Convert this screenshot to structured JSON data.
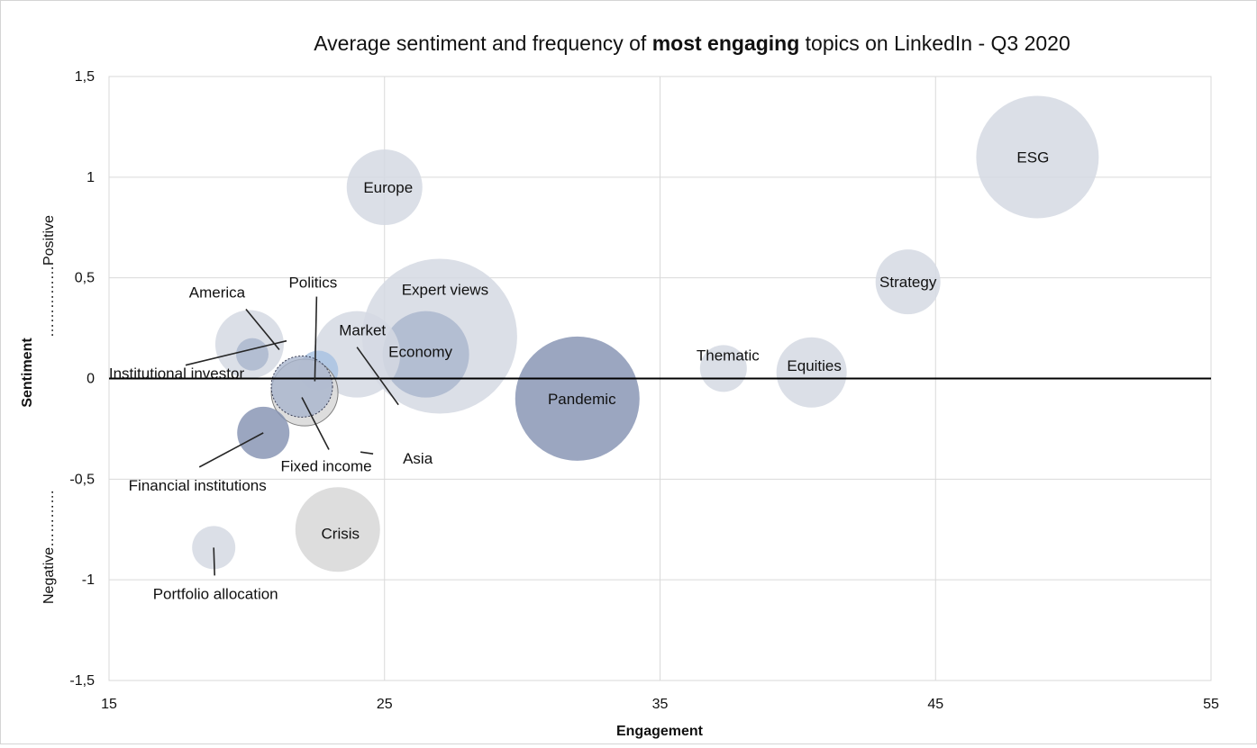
{
  "chart_data": {
    "type": "bubble",
    "title_parts": {
      "pre": "Average sentiment and frequency of ",
      "bold": "most engaging",
      "post": " topics on LinkedIn - Q3 2020"
    },
    "xlabel": "Engagement",
    "ylabel": "Sentiment",
    "y_side_labels": {
      "negative": "Negative…………",
      "positive": "……………Positive"
    },
    "xlim": [
      15,
      55
    ],
    "ylim": [
      -1.5,
      1.5
    ],
    "x_ticks": [
      15,
      25,
      35,
      45,
      55
    ],
    "y_ticks": [
      -1.5,
      -1,
      -0.5,
      0,
      0.5,
      1,
      1.5
    ],
    "x_tick_labels": [
      "15",
      "25",
      "35",
      "45",
      "55"
    ],
    "y_tick_labels": [
      "-1,5",
      "-1",
      "-0,5",
      "0",
      "0,5",
      "1",
      "1,5"
    ],
    "grid": true,
    "colors": {
      "light": "#d5d9e3",
      "mid": "#a9b5cd",
      "dark": "#8593b2",
      "blue": "#a9c3e2",
      "grey": "#d9d9d9",
      "gridline": "#d9d9d9",
      "axis": "#000000"
    },
    "points": [
      {
        "name": "ESG",
        "x": 48.7,
        "y": 1.1,
        "size": 68,
        "color": "light"
      },
      {
        "name": "Strategy",
        "x": 44.0,
        "y": 0.48,
        "size": 36,
        "color": "light"
      },
      {
        "name": "Equities",
        "x": 40.5,
        "y": 0.03,
        "size": 39,
        "color": "light"
      },
      {
        "name": "Thematic",
        "x": 37.3,
        "y": 0.05,
        "size": 26,
        "color": "light"
      },
      {
        "name": "Pandemic",
        "x": 32.0,
        "y": -0.1,
        "size": 69,
        "color": "dark"
      },
      {
        "name": "Expert views",
        "x": 27.0,
        "y": 0.21,
        "size": 86,
        "color": "light"
      },
      {
        "name": "Economy",
        "x": 26.5,
        "y": 0.12,
        "size": 48,
        "color": "mid"
      },
      {
        "name": "Europe",
        "x": 25.0,
        "y": 0.95,
        "size": 42,
        "color": "light"
      },
      {
        "name": "Market",
        "x": 24.0,
        "y": 0.12,
        "size": 48,
        "color": "light"
      },
      {
        "name": "Crisis",
        "x": 23.3,
        "y": -0.75,
        "size": 47,
        "color": "grey"
      },
      {
        "name": "Politics",
        "x": 22.6,
        "y": 0.04,
        "size": 22,
        "color": "blue"
      },
      {
        "name": "Asia",
        "x": 22.1,
        "y": -0.07,
        "size": 37,
        "color": "grey"
      },
      {
        "name": "Fixed income",
        "x": 22.0,
        "y": -0.04,
        "size": 34,
        "color": "mid"
      },
      {
        "name": "America",
        "x": 20.1,
        "y": 0.17,
        "size": 38,
        "color": "light"
      },
      {
        "name": "Institutional investor",
        "x": 20.2,
        "y": 0.12,
        "size": 18,
        "color": "mid"
      },
      {
        "name": "Financial institutions",
        "x": 20.6,
        "y": -0.27,
        "size": 29,
        "color": "dark"
      },
      {
        "name": "Portfolio allocation",
        "x": 18.8,
        "y": -0.84,
        "size": 24,
        "color": "light"
      }
    ]
  }
}
